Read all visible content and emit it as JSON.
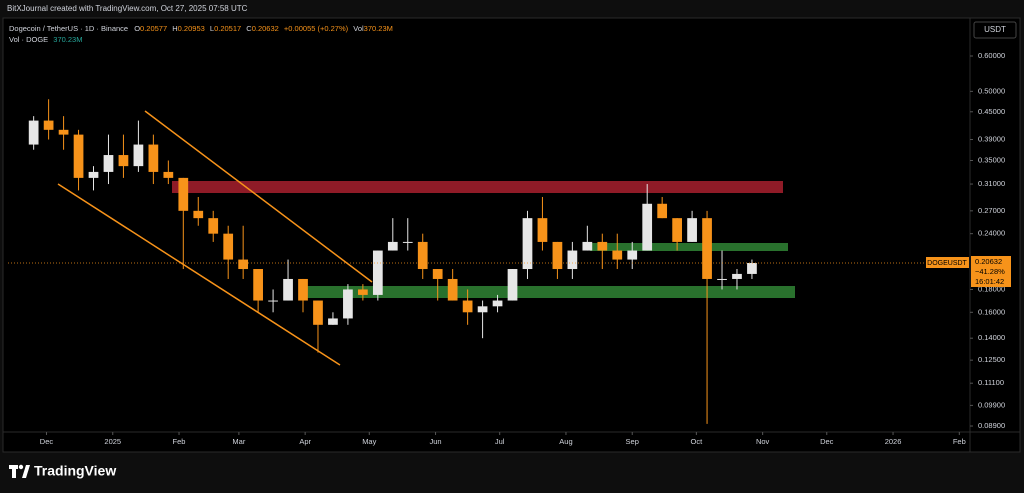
{
  "top_bar": {
    "text": "BitXJournal created with TradingView.com, Oct 27, 2025 07:58 UTC"
  },
  "legend": {
    "symbol": "Dogecoin / TetherUS · 1D · Binance",
    "o_label": "O",
    "o": "0.20577",
    "h_label": "H",
    "h": "0.20953",
    "l_label": "L",
    "l": "0.20517",
    "c_label": "C",
    "c": "0.20632",
    "change": "+0.00055 (+0.27%)",
    "vol_label": "Vol",
    "vol": "370.23M",
    "vol_line_label": "Vol · DOGE",
    "vol_line_value": "370.23M"
  },
  "currency": "USDT",
  "price_tag": {
    "symbol": "DOGEUSDT",
    "price": "0.20632",
    "change": "−41.28%",
    "countdown": "16:01:42"
  },
  "footer": {
    "brand": "TradingView"
  },
  "chart_data": {
    "type": "candlestick",
    "log_scale": true,
    "up_color": "#e6e6e6",
    "down_color": "#f7931a",
    "xlim": [
      0,
      450
    ],
    "xticks": [
      {
        "value": 18,
        "label": "Dec"
      },
      {
        "value": 49,
        "label": "2025"
      },
      {
        "value": 80,
        "label": "Feb"
      },
      {
        "value": 108,
        "label": "Mar"
      },
      {
        "value": 139,
        "label": "Apr"
      },
      {
        "value": 169,
        "label": "May"
      },
      {
        "value": 200,
        "label": "Jun"
      },
      {
        "value": 230,
        "label": "Jul"
      },
      {
        "value": 261,
        "label": "Aug"
      },
      {
        "value": 292,
        "label": "Sep"
      },
      {
        "value": 322,
        "label": "Oct"
      },
      {
        "value": 353,
        "label": "Nov"
      },
      {
        "value": 383,
        "label": "Dec"
      },
      {
        "value": 414,
        "label": "2026"
      },
      {
        "value": 445,
        "label": "Feb"
      }
    ],
    "ylim": [
      0.0863,
      0.635
    ],
    "yticks": [
      {
        "value": 0.6,
        "label": "0.60000"
      },
      {
        "value": 0.5,
        "label": "0.50000"
      },
      {
        "value": 0.45,
        "label": "0.45000"
      },
      {
        "value": 0.39,
        "label": "0.39000"
      },
      {
        "value": 0.35,
        "label": "0.35000"
      },
      {
        "value": 0.31,
        "label": "0.31000"
      },
      {
        "value": 0.27,
        "label": "0.27000"
      },
      {
        "value": 0.24,
        "label": "0.24000"
      },
      {
        "value": 0.18,
        "label": "0.18000"
      },
      {
        "value": 0.16,
        "label": "0.16000"
      },
      {
        "value": 0.14,
        "label": "0.14000"
      },
      {
        "value": 0.125,
        "label": "0.12500"
      },
      {
        "value": 0.111,
        "label": "0.11100"
      },
      {
        "value": 0.099,
        "label": "0.09900"
      },
      {
        "value": 0.089,
        "label": "0.08900"
      }
    ],
    "x": [
      12,
      19,
      26,
      33,
      40,
      47,
      54,
      61,
      68,
      75,
      82,
      89,
      96,
      103,
      110,
      117,
      124,
      131,
      138,
      145,
      152,
      159,
      166,
      173,
      180,
      187,
      194,
      201,
      208,
      215,
      222,
      229,
      236,
      243,
      250,
      257,
      264,
      271,
      278,
      285,
      292,
      299,
      306,
      313,
      320,
      327,
      334,
      341,
      348
    ],
    "open": [
      0.38,
      0.43,
      0.41,
      0.4,
      0.32,
      0.33,
      0.36,
      0.34,
      0.38,
      0.33,
      0.32,
      0.27,
      0.26,
      0.24,
      0.21,
      0.2,
      0.17,
      0.17,
      0.19,
      0.17,
      0.15,
      0.155,
      0.18,
      0.175,
      0.22,
      0.23,
      0.23,
      0.2,
      0.19,
      0.17,
      0.16,
      0.165,
      0.17,
      0.2,
      0.26,
      0.23,
      0.2,
      0.22,
      0.23,
      0.22,
      0.21,
      0.22,
      0.28,
      0.26,
      0.23,
      0.26,
      0.19,
      0.19,
      0.195
    ],
    "high": [
      0.44,
      0.48,
      0.44,
      0.41,
      0.34,
      0.4,
      0.4,
      0.43,
      0.4,
      0.35,
      0.32,
      0.29,
      0.27,
      0.25,
      0.25,
      0.2,
      0.18,
      0.21,
      0.19,
      0.17,
      0.16,
      0.185,
      0.185,
      0.22,
      0.26,
      0.26,
      0.24,
      0.2,
      0.2,
      0.18,
      0.17,
      0.175,
      0.2,
      0.27,
      0.29,
      0.23,
      0.23,
      0.25,
      0.24,
      0.24,
      0.23,
      0.31,
      0.29,
      0.26,
      0.27,
      0.27,
      0.22,
      0.2,
      0.21
    ],
    "low": [
      0.37,
      0.39,
      0.37,
      0.3,
      0.3,
      0.31,
      0.32,
      0.33,
      0.31,
      0.31,
      0.2,
      0.25,
      0.23,
      0.19,
      0.19,
      0.16,
      0.16,
      0.17,
      0.16,
      0.13,
      0.15,
      0.15,
      0.17,
      0.17,
      0.22,
      0.22,
      0.19,
      0.17,
      0.17,
      0.15,
      0.14,
      0.16,
      0.17,
      0.19,
      0.22,
      0.19,
      0.19,
      0.22,
      0.2,
      0.2,
      0.2,
      0.22,
      0.26,
      0.22,
      0.23,
      0.09,
      0.18,
      0.18,
      0.19
    ],
    "close": [
      0.43,
      0.41,
      0.4,
      0.32,
      0.33,
      0.36,
      0.34,
      0.38,
      0.33,
      0.32,
      0.27,
      0.26,
      0.24,
      0.21,
      0.2,
      0.17,
      0.17,
      0.19,
      0.17,
      0.15,
      0.155,
      0.18,
      0.175,
      0.22,
      0.23,
      0.23,
      0.2,
      0.19,
      0.17,
      0.16,
      0.165,
      0.17,
      0.2,
      0.26,
      0.23,
      0.2,
      0.22,
      0.23,
      0.22,
      0.21,
      0.22,
      0.28,
      0.26,
      0.23,
      0.26,
      0.19,
      0.19,
      0.195,
      0.2063
    ]
  }
}
